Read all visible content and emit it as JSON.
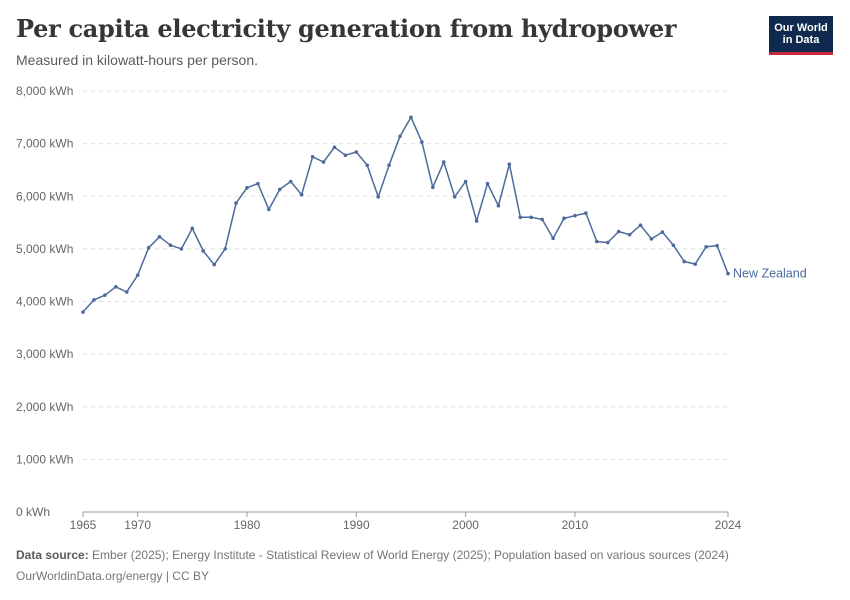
{
  "header": {
    "title": "Per capita electricity generation from hydropower",
    "subtitle": "Measured in kilowatt-hours per person."
  },
  "logo": {
    "line1": "Our World",
    "line2": "in Data"
  },
  "footer": {
    "source_label": "Data source:",
    "source_text": "Ember (2025); Energy Institute - Statistical Review of World Energy (2025); Population based on various sources (2024)",
    "credit": "OurWorldinData.org/energy | CC BY"
  },
  "colors": {
    "series": "#4c6a9c",
    "grid": "#dddddd",
    "axis_text": "#666666"
  },
  "chart_data": {
    "type": "line",
    "title": "Per capita electricity generation from hydropower",
    "subtitle": "Measured in kilowatt-hours per person.",
    "ylim": [
      0,
      8000
    ],
    "xlim": [
      1965,
      2024
    ],
    "y_ticks": [
      0,
      1000,
      2000,
      3000,
      4000,
      5000,
      6000,
      7000,
      8000
    ],
    "y_tick_labels": [
      "0 kWh",
      "1,000 kWh",
      "2,000 kWh",
      "3,000 kWh",
      "4,000 kWh",
      "5,000 kWh",
      "6,000 kWh",
      "7,000 kWh",
      "8,000 kWh"
    ],
    "x_ticks": [
      1965,
      1970,
      1980,
      1990,
      2000,
      2010,
      2024
    ],
    "x_tick_labels": [
      "1965",
      "1970",
      "1980",
      "1990",
      "2000",
      "2010",
      "2024"
    ],
    "grid": "horizontal dashed",
    "series": [
      {
        "name": "New Zealand",
        "x": [
          1965,
          1966,
          1967,
          1968,
          1969,
          1970,
          1971,
          1972,
          1973,
          1974,
          1975,
          1976,
          1977,
          1978,
          1979,
          1980,
          1981,
          1982,
          1983,
          1984,
          1985,
          1986,
          1987,
          1988,
          1989,
          1990,
          1991,
          1992,
          1993,
          1994,
          1995,
          1996,
          1997,
          1998,
          1999,
          2000,
          2001,
          2002,
          2003,
          2004,
          2005,
          2006,
          2007,
          2008,
          2009,
          2010,
          2011,
          2012,
          2013,
          2014,
          2015,
          2016,
          2017,
          2018,
          2019,
          2020,
          2021,
          2022,
          2023,
          2024
        ],
        "y": [
          3800,
          4030,
          4120,
          4280,
          4180,
          4500,
          5020,
          5230,
          5070,
          5000,
          5390,
          4960,
          4700,
          5000,
          5870,
          6160,
          6240,
          5750,
          6130,
          6280,
          6030,
          6750,
          6650,
          6930,
          6780,
          6840,
          6590,
          5990,
          6590,
          7140,
          7500,
          7030,
          6170,
          6650,
          5990,
          6280,
          5530,
          6240,
          5820,
          6610,
          5600,
          5600,
          5560,
          5200,
          5580,
          5630,
          5680,
          5140,
          5120,
          5330,
          5270,
          5450,
          5190,
          5320,
          5070,
          4760,
          4710,
          5040,
          5060,
          4530
        ]
      }
    ]
  }
}
